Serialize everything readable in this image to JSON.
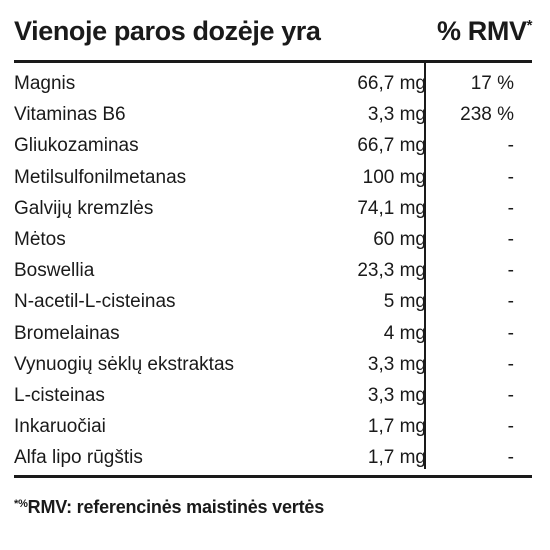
{
  "header": {
    "title": "Vienoje paros dozėje yra",
    "rmv_label": "% RMV",
    "rmv_marker": "*"
  },
  "rows": [
    {
      "name": "Magnis",
      "amount": "66,7 mg",
      "rmv": "17 %"
    },
    {
      "name": "Vitaminas B6",
      "amount": "3,3 mg",
      "rmv": "238 %"
    },
    {
      "name": "Gliukozaminas",
      "amount": "66,7 mg",
      "rmv": "-"
    },
    {
      "name": "Metilsulfonilmetanas",
      "amount": "100 mg",
      "rmv": "-"
    },
    {
      "name": "Galvijų kremzlės",
      "amount": "74,1 mg",
      "rmv": "-"
    },
    {
      "name": "Mėtos",
      "amount": "60 mg",
      "rmv": "-"
    },
    {
      "name": "Boswellia",
      "amount": "23,3 mg",
      "rmv": "-"
    },
    {
      "name": "N-acetil-L-cisteinas",
      "amount": "5 mg",
      "rmv": "-"
    },
    {
      "name": "Bromelainas",
      "amount": "4 mg",
      "rmv": "-"
    },
    {
      "name": "Vynuogių sėklų ekstraktas",
      "amount": "3,3 mg",
      "rmv": "-"
    },
    {
      "name": "L-cisteinas",
      "amount": "3,3 mg",
      "rmv": "-"
    },
    {
      "name": "Inkaruočiai",
      "amount": "1,7 mg",
      "rmv": "-"
    },
    {
      "name": "Alfa lipo rūgštis",
      "amount": "1,7 mg",
      "rmv": "-"
    }
  ],
  "footnote": {
    "marker": "*%",
    "text": "RMV: referencinės maistinės vertės"
  }
}
